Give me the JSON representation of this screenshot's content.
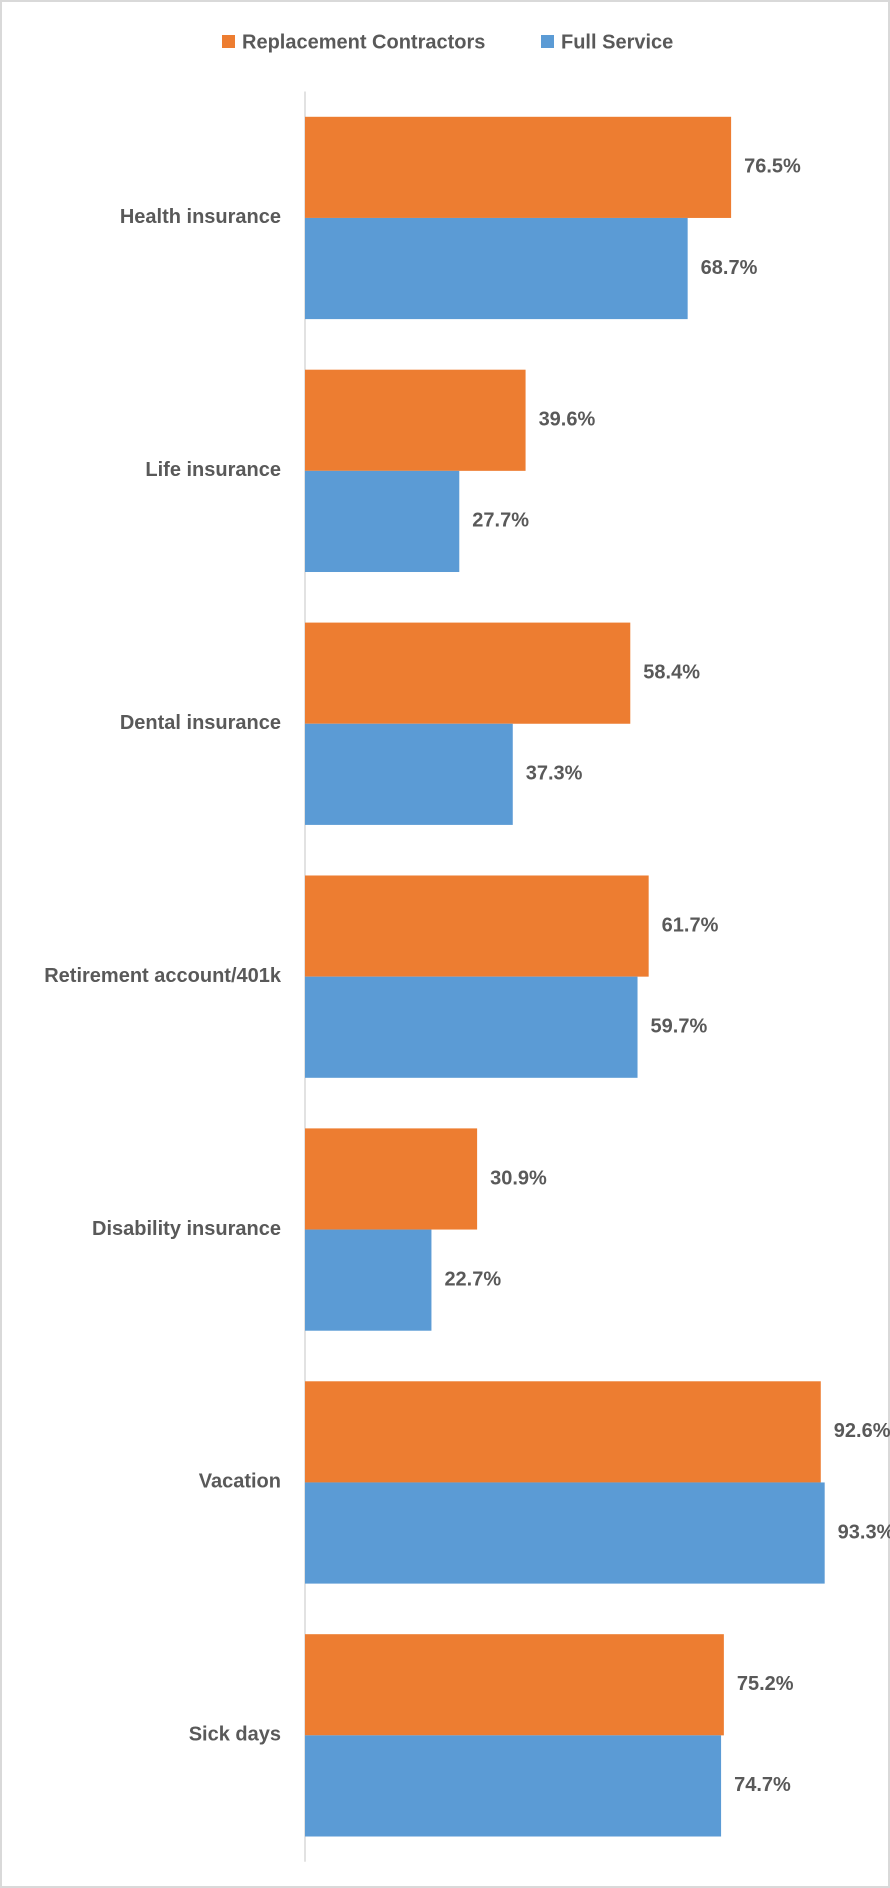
{
  "chart_data": {
    "type": "hbar",
    "categories": [
      "Health insurance",
      "Life insurance",
      "Dental insurance",
      "Retirement account/401k",
      "Disability insurance",
      "Vacation",
      "Sick days"
    ],
    "series": [
      {
        "name": "Replacement Contractors",
        "color": "#ed7d31",
        "values": [
          76.5,
          39.6,
          58.4,
          61.7,
          30.9,
          92.6,
          75.2
        ],
        "value_labels": [
          "76.5%",
          "39.6%",
          "58.4%",
          "61.7%",
          "30.9%",
          "92.6%",
          "75.2%"
        ]
      },
      {
        "name": "Full Service",
        "color": "#5b9bd5",
        "values": [
          68.7,
          27.7,
          37.3,
          59.7,
          22.7,
          93.3,
          74.7
        ],
        "value_labels": [
          "68.7%",
          "27.7%",
          "37.3%",
          "59.7%",
          "22.7%",
          "93.3%",
          "74.7%"
        ]
      }
    ],
    "xlim": [
      0,
      100
    ],
    "legend": "top"
  }
}
